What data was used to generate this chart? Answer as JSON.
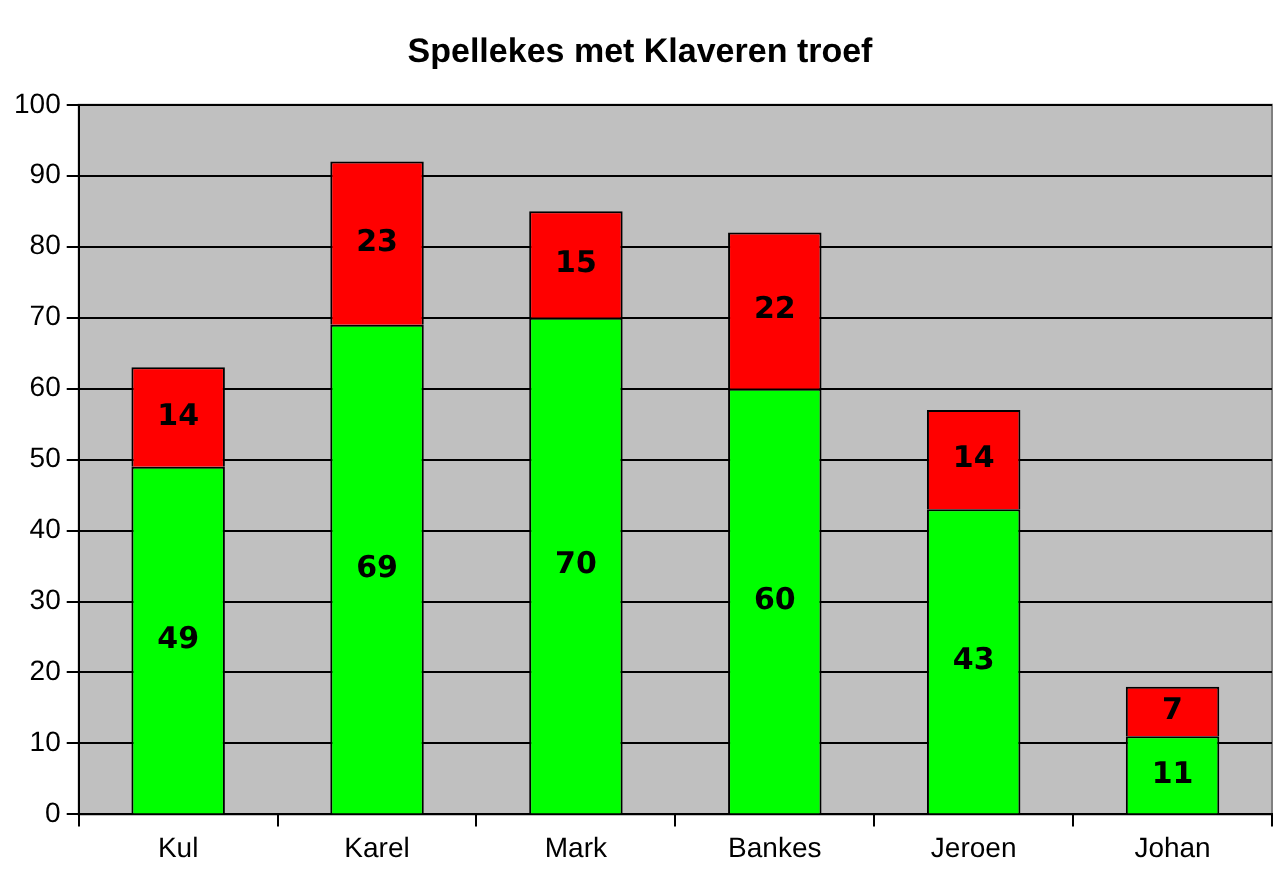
{
  "chart_data": {
    "type": "bar",
    "title": "Spellekes met Klaveren troef",
    "stacked": true,
    "categories": [
      "Kul",
      "Karel",
      "Mark",
      "Bankes",
      "Jeroen",
      "Johan"
    ],
    "series": [
      {
        "color": "#00ff00",
        "values": [
          49,
          69,
          70,
          60,
          43,
          11
        ]
      },
      {
        "color": "#ff0000",
        "values": [
          14,
          23,
          15,
          22,
          14,
          7
        ]
      }
    ],
    "ylim": [
      0,
      100
    ],
    "yticks": [
      0,
      10,
      20,
      30,
      40,
      50,
      60,
      70,
      80,
      90,
      100
    ],
    "grid": "y",
    "legend": false,
    "data_labels": true
  }
}
